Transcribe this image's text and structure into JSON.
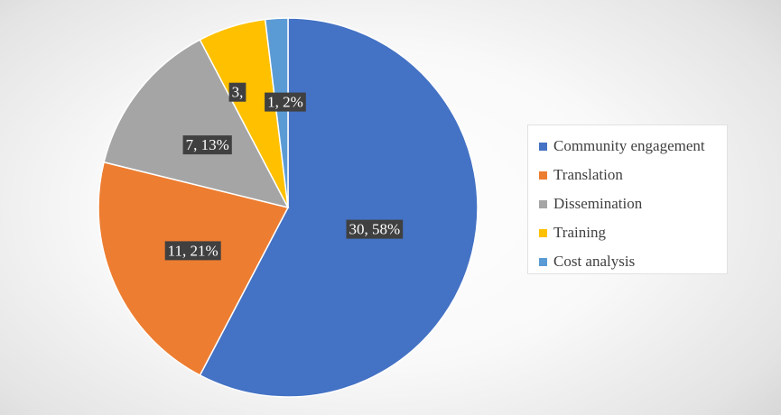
{
  "chart_data": {
    "type": "pie",
    "title": "",
    "categories": [
      "Community engagement",
      "Translation",
      "Dissemination",
      "Training",
      "Cost analysis"
    ],
    "values": [
      30,
      11,
      7,
      3,
      1
    ],
    "data_labels": [
      "30, 58%",
      "11, 21%",
      "7, 13%",
      "3,",
      "1, 2%"
    ],
    "colors": [
      "#4472C4",
      "#ED7D31",
      "#A5A5A5",
      "#FFC000",
      "#5B9BD5"
    ],
    "legend_position": "right",
    "start_angle_deg": 0,
    "direction": "clockwise"
  }
}
